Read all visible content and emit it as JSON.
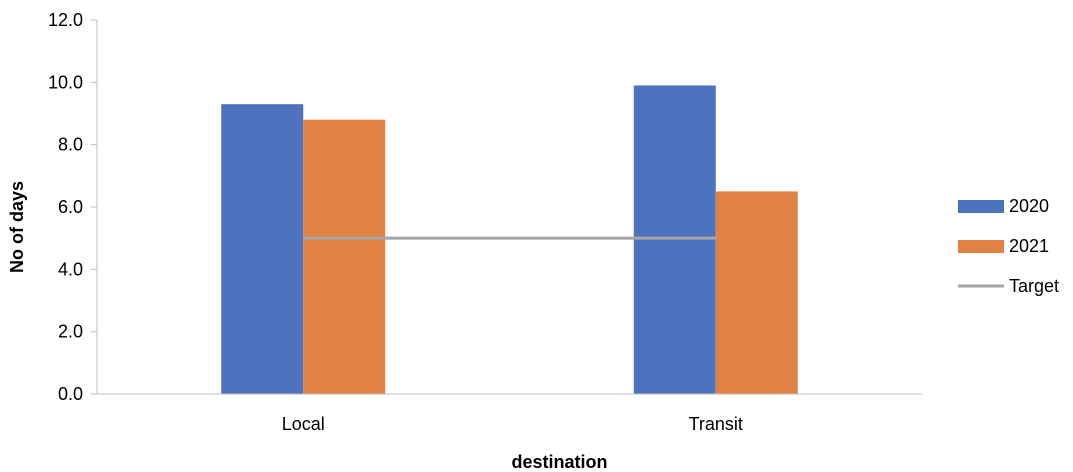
{
  "chart_data": {
    "type": "bar",
    "title": "",
    "xlabel": "destination",
    "ylabel": "No of days",
    "categories": [
      "Local",
      "Transit"
    ],
    "ylim": [
      0,
      12
    ],
    "ytick_step": 2,
    "ytick_labels": [
      "0.0",
      "2.0",
      "4.0",
      "6.0",
      "8.0",
      "10.0",
      "12.0"
    ],
    "grid": false,
    "legend_position": "right",
    "series": [
      {
        "name": "2020",
        "kind": "bar",
        "color": "#4e73be",
        "values": [
          9.3,
          9.9
        ]
      },
      {
        "name": "2021",
        "kind": "bar",
        "color": "#df8244",
        "values": [
          8.8,
          6.5
        ]
      },
      {
        "name": "Target",
        "kind": "line",
        "color": "#a5a5a5",
        "values": [
          5.0,
          5.0
        ]
      }
    ]
  }
}
